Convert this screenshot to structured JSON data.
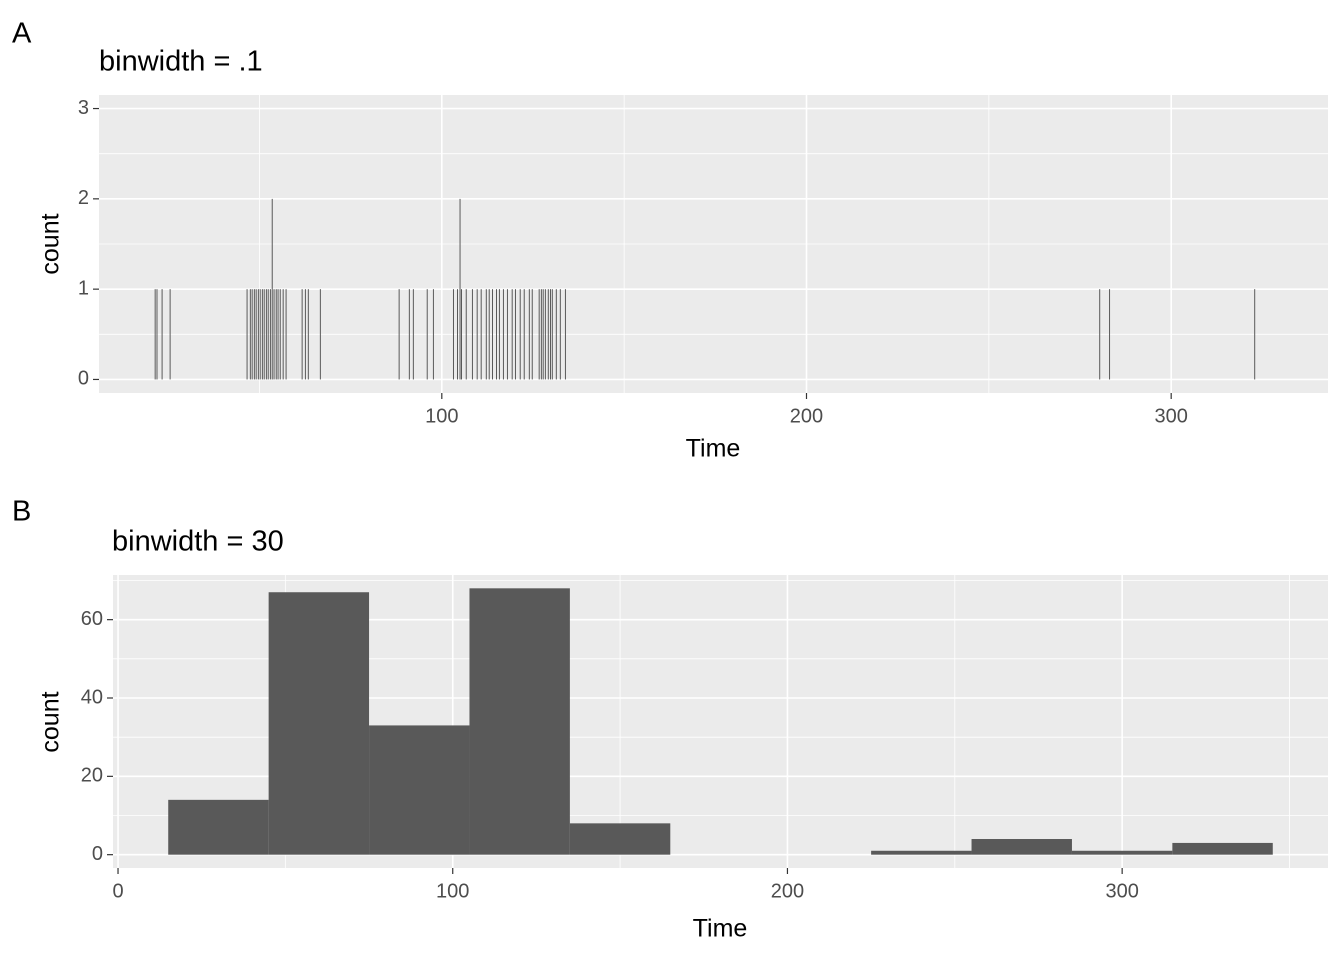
{
  "chart_data": [
    {
      "type": "histogram",
      "tag": "A",
      "title": "binwidth = .1",
      "xlabel": "Time",
      "ylabel": "count",
      "binwidth": 0.1,
      "color": "#595959",
      "x": [
        21.4,
        21.9,
        23.3,
        25.5,
        46.6,
        47.5,
        48.0,
        48.6,
        49.1,
        49.7,
        50.2,
        50.8,
        51.3,
        51.9,
        52.4,
        53.0,
        53.5,
        54.0,
        54.6,
        55.1,
        55.7,
        56.5,
        57.3,
        61.7,
        62.6,
        63.4,
        66.7,
        88.3,
        91.1,
        92.2,
        96.0,
        97.7,
        103.2,
        104.3,
        105.0,
        105.4,
        106.7,
        108.4,
        109.7,
        110.8,
        112.2,
        113.0,
        113.9,
        115.0,
        115.8,
        116.9,
        118.0,
        119.3,
        120.2,
        121.5,
        122.6,
        124.0,
        124.8,
        126.7,
        127.3,
        127.8,
        128.4,
        129.2,
        129.8,
        130.3,
        131.4,
        132.5,
        133.9,
        280.4,
        283.1,
        322.9
      ],
      "values": [
        1,
        1,
        1,
        1,
        1,
        1,
        1,
        1,
        1,
        1,
        1,
        1,
        1,
        1,
        1,
        1,
        2,
        1,
        1,
        1,
        1,
        1,
        1,
        1,
        1,
        1,
        1,
        1,
        1,
        1,
        1,
        1,
        1,
        1,
        2,
        1,
        1,
        1,
        1,
        1,
        1,
        1,
        1,
        1,
        1,
        1,
        1,
        1,
        1,
        1,
        1,
        1,
        1,
        1,
        1,
        1,
        1,
        1,
        1,
        1,
        1,
        1,
        1,
        1,
        1,
        1
      ],
      "xlim": [
        6,
        343
      ],
      "ylim": [
        -0.15,
        3.15
      ],
      "xticks": [
        100,
        200,
        300
      ],
      "yticks": [
        0,
        1,
        2,
        3
      ],
      "xminor": [
        50,
        150,
        250
      ],
      "yminor": [
        0.5,
        1.5,
        2.5
      ],
      "grid": true
    },
    {
      "type": "histogram",
      "tag": "B",
      "title": "binwidth = 30",
      "xlabel": "Time",
      "ylabel": "count",
      "color": "#595959",
      "bins": [
        15,
        45,
        75,
        105,
        135,
        165,
        195,
        225,
        255,
        285,
        315,
        345
      ],
      "values": [
        14,
        67,
        33,
        68,
        8,
        0,
        0,
        1,
        4,
        1,
        3
      ],
      "xlim": [
        -1.5,
        361.5
      ],
      "ylim": [
        -3.4,
        71.4
      ],
      "xticks": [
        0,
        100,
        200,
        300
      ],
      "yticks": [
        0,
        20,
        40,
        60
      ],
      "xminor": [
        50,
        150,
        250,
        350
      ],
      "yminor": [
        10,
        30,
        50,
        70
      ],
      "grid": true
    }
  ]
}
